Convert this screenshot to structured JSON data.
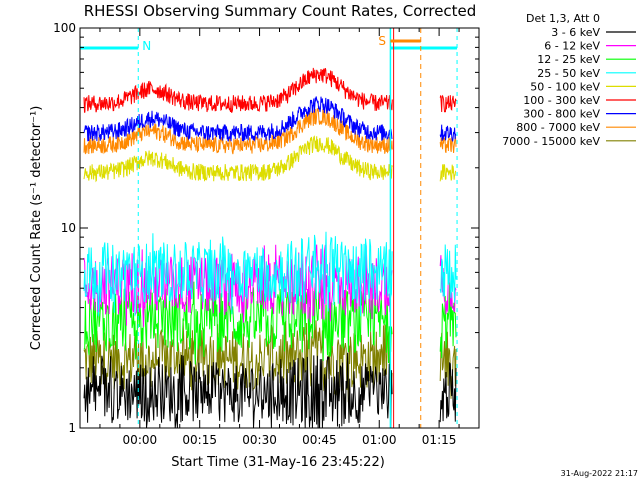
{
  "chart_data": {
    "type": "line",
    "title": "RHESSI Observing Summary Count Rates, Corrected",
    "xlabel": "Start Time (31-May-16 23:45:22)",
    "ylabel": "Corrected Count Rate (s⁻¹ detector⁻¹)",
    "y_scale": "log",
    "ylim": [
      1,
      100
    ],
    "y_ticks": [
      "1",
      "10",
      "100"
    ],
    "xlim_minutes": [
      0,
      100
    ],
    "x_ticks": [
      {
        "label": "00:00",
        "minute": 15
      },
      {
        "label": "00:15",
        "minute": 30
      },
      {
        "label": "00:30",
        "minute": 45
      },
      {
        "label": "00:45",
        "minute": 60
      },
      {
        "label": "01:00",
        "minute": 75
      },
      {
        "label": "01:15",
        "minute": 90
      }
    ],
    "legend_header": "Det 1,3, Att 0",
    "legend_position": "top-right outside",
    "series": [
      {
        "name": "3 - 6 keV",
        "color": "#000000",
        "level": 1.5
      },
      {
        "name": "6 - 12 keV",
        "color": "#ff00ff",
        "level": 5.2
      },
      {
        "name": "12 - 25 keV",
        "color": "#00ff00",
        "level": 3.4
      },
      {
        "name": "25 - 50 keV",
        "color": "#00ffff",
        "level": 6.0
      },
      {
        "name": "50 - 100 keV",
        "color": "#dddd00",
        "level": 19
      },
      {
        "name": "100 - 300 keV",
        "color": "#ff0000",
        "level": 42
      },
      {
        "name": "300 - 800 keV",
        "color": "#0000ff",
        "level": 30
      },
      {
        "name": "800 - 7000 keV",
        "color": "#ff8800",
        "level": 26
      },
      {
        "name": "7000 - 15000 keV",
        "color": "#808000",
        "level": 2.2
      }
    ],
    "annotations": {
      "night_label": "N",
      "saa_label": "S"
    }
  },
  "timestamp": "31-Aug-2022 21:17"
}
